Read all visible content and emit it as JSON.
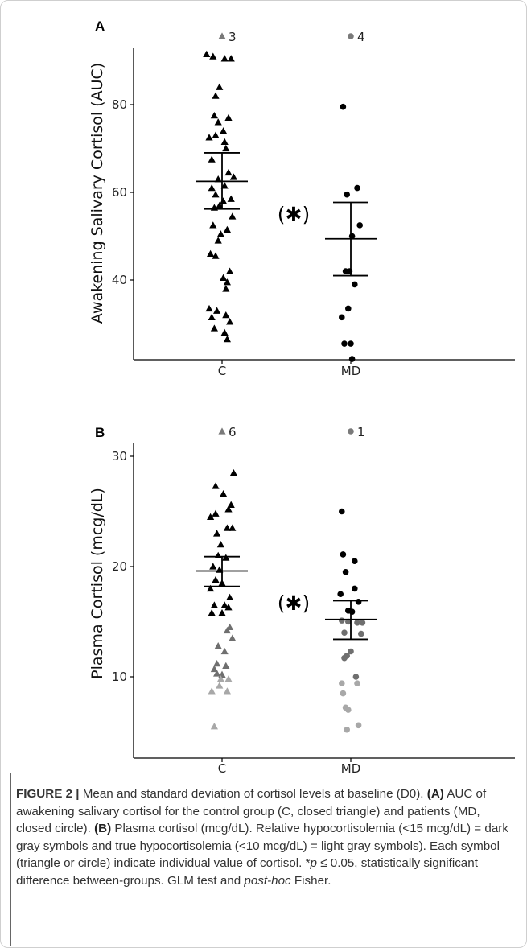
{
  "chart_data": [
    {
      "panel_label": "A",
      "type": "scatter",
      "ylabel": "Awakening Salivary Cortisol (AUC)",
      "categories": [
        "C",
        "MD"
      ],
      "yticks": [
        40,
        60,
        80
      ],
      "ylim": [
        22,
        96
      ],
      "grid": false,
      "significance_label": "(✱)",
      "series": [
        {
          "category": "C",
          "marker": "triangle",
          "color": "#000000",
          "points": [
            [
              -0.12,
              91.5
            ],
            [
              -0.07,
              91
            ],
            [
              0.02,
              90.5
            ],
            [
              0.07,
              90.5
            ],
            [
              -0.02,
              84
            ],
            [
              -0.05,
              82
            ],
            [
              -0.06,
              77.5
            ],
            [
              0.05,
              77
            ],
            [
              -0.03,
              76
            ],
            [
              0.01,
              74
            ],
            [
              -0.05,
              73
            ],
            [
              -0.1,
              72.5
            ],
            [
              0.02,
              71.5
            ],
            [
              0.03,
              70
            ],
            [
              -0.08,
              67.5
            ],
            [
              0.05,
              64.5
            ],
            [
              0.09,
              63.5
            ],
            [
              -0.03,
              63
            ],
            [
              0.02,
              61.5
            ],
            [
              -0.08,
              61
            ],
            [
              -0.05,
              59.5
            ],
            [
              0.07,
              58.5
            ],
            [
              0.01,
              58
            ],
            [
              -0.02,
              57
            ],
            [
              -0.06,
              56.5
            ],
            [
              0.08,
              54.5
            ],
            [
              -0.07,
              52.5
            ],
            [
              0.04,
              51.5
            ],
            [
              -0.01,
              50.5
            ],
            [
              -0.03,
              49
            ],
            [
              -0.09,
              46
            ],
            [
              -0.05,
              45.5
            ],
            [
              0.06,
              42
            ],
            [
              0.01,
              40.5
            ],
            [
              0.04,
              39.5
            ],
            [
              0.03,
              38
            ],
            [
              -0.1,
              33.5
            ],
            [
              -0.04,
              33
            ],
            [
              0.03,
              32
            ],
            [
              -0.08,
              31.5
            ],
            [
              0.06,
              30.5
            ],
            [
              -0.06,
              29
            ],
            [
              0.02,
              28
            ],
            [
              0.04,
              26.5
            ]
          ]
        },
        {
          "category": "MD",
          "marker": "circle",
          "color": "#000000",
          "points": [
            [
              -0.06,
              79.5
            ],
            [
              0.05,
              61
            ],
            [
              -0.03,
              59.5
            ],
            [
              0.07,
              52.5
            ],
            [
              0.01,
              50
            ],
            [
              -0.04,
              42
            ],
            [
              -0.01,
              42
            ],
            [
              0.03,
              39
            ],
            [
              -0.02,
              33.5
            ],
            [
              -0.07,
              31.5
            ],
            [
              -0.05,
              25.5
            ],
            [
              0.0,
              25.5
            ],
            [
              0.01,
              22
            ]
          ]
        }
      ],
      "summary": [
        {
          "category": "C",
          "mean": 62.5,
          "lower": 56.2,
          "upper": 69
        },
        {
          "category": "MD",
          "mean": 49.4,
          "lower": 41,
          "upper": 57.7
        }
      ],
      "annotations": [
        {
          "category": "C",
          "marker": "triangle",
          "label": "3"
        },
        {
          "category": "MD",
          "marker": "circle",
          "label": "4"
        }
      ]
    },
    {
      "panel_label": "B",
      "type": "scatter",
      "ylabel": "Plasma Cortisol (mcg/dL)",
      "categories": [
        "C",
        "MD"
      ],
      "yticks": [
        10,
        20,
        30
      ],
      "ylim": [
        3,
        31.5
      ],
      "grid": false,
      "significance_label": "(✱)",
      "series": [
        {
          "category": "C",
          "marker": "triangle",
          "color": "#000000",
          "points": [
            [
              0.09,
              28.5
            ],
            [
              -0.05,
              27.3
            ],
            [
              0.01,
              26.6
            ],
            [
              0.07,
              25.6
            ],
            [
              0.05,
              25.2
            ],
            [
              -0.05,
              24.8
            ],
            [
              -0.09,
              24.5
            ],
            [
              0.04,
              23.5
            ],
            [
              0.08,
              23.5
            ],
            [
              -0.04,
              23
            ],
            [
              -0.01,
              22
            ],
            [
              -0.03,
              21
            ],
            [
              0.03,
              20.8
            ],
            [
              -0.07,
              20
            ],
            [
              -0.02,
              19.7
            ],
            [
              -0.05,
              18.8
            ],
            [
              0.0,
              18.5
            ],
            [
              -0.09,
              18
            ],
            [
              0.06,
              17.2
            ],
            [
              -0.06,
              16.5
            ],
            [
              0.02,
              16.5
            ],
            [
              0.05,
              16.3
            ],
            [
              -0.08,
              15.8
            ],
            [
              0.0,
              15.8
            ]
          ]
        },
        {
          "category": "C",
          "marker": "triangle",
          "color": "#6f6f6f",
          "points": [
            [
              0.06,
              14.5
            ],
            [
              0.04,
              14.2
            ],
            [
              0.08,
              13.5
            ],
            [
              -0.03,
              12.8
            ],
            [
              0.02,
              12.3
            ],
            [
              -0.04,
              11.2
            ],
            [
              0.03,
              11
            ],
            [
              -0.06,
              10.7
            ],
            [
              -0.04,
              10.3
            ],
            [
              0.0,
              10.2
            ]
          ]
        },
        {
          "category": "C",
          "marker": "triangle",
          "color": "#a8a8a8",
          "points": [
            [
              0.05,
              9.8
            ],
            [
              -0.01,
              9.8
            ],
            [
              -0.02,
              9.2
            ],
            [
              -0.08,
              8.7
            ],
            [
              0.04,
              8.7
            ],
            [
              -0.06,
              5.5
            ]
          ]
        },
        {
          "category": "MD",
          "marker": "circle",
          "color": "#000000",
          "points": [
            [
              -0.07,
              25
            ],
            [
              -0.06,
              21.1
            ],
            [
              0.03,
              20.5
            ],
            [
              -0.04,
              19.5
            ],
            [
              0.03,
              18
            ],
            [
              -0.08,
              17.5
            ],
            [
              0.06,
              16.8
            ],
            [
              -0.02,
              16
            ],
            [
              0.01,
              15.9
            ]
          ]
        },
        {
          "category": "MD",
          "marker": "circle",
          "color": "#6f6f6f",
          "points": [
            [
              -0.07,
              15.1
            ],
            [
              -0.02,
              15
            ],
            [
              0.05,
              14.9
            ],
            [
              0.09,
              14.9
            ],
            [
              -0.05,
              14
            ],
            [
              0.08,
              13.9
            ],
            [
              0.0,
              12.3
            ],
            [
              -0.05,
              11.7
            ],
            [
              -0.03,
              11.9
            ],
            [
              0.04,
              10
            ]
          ]
        },
        {
          "category": "MD",
          "marker": "circle",
          "color": "#a8a8a8",
          "points": [
            [
              -0.07,
              9.4
            ],
            [
              0.05,
              9.4
            ],
            [
              -0.06,
              8.5
            ],
            [
              -0.04,
              7.2
            ],
            [
              -0.02,
              7.0
            ],
            [
              0.06,
              5.6
            ],
            [
              -0.03,
              5.2
            ]
          ]
        }
      ],
      "summary": [
        {
          "category": "C",
          "mean": 19.6,
          "lower": 18.2,
          "upper": 20.9
        },
        {
          "category": "MD",
          "mean": 15.2,
          "lower": 13.4,
          "upper": 16.9
        }
      ],
      "annotations": [
        {
          "category": "C",
          "marker": "triangle",
          "label": "6"
        },
        {
          "category": "MD",
          "marker": "circle",
          "label": "1"
        }
      ]
    }
  ],
  "caption": {
    "fig_label": "FIGURE 2 |",
    "s1": " Mean and standard deviation of cortisol levels at baseline (D0). ",
    "a_label": "(A)",
    "s2": " AUC of awakening salivary cortisol for the control group (C, closed triangle) and patients (MD, closed circle). ",
    "b_label": "(B)",
    "s3": " Plasma cortisol (mcg/dL). Relative hypocortisolemia (<15 mcg/dL) = dark gray symbols and true hypocortisolemia (<10 mcg/dL) = light gray symbols). Each symbol (triangle or circle) indicate individual value of cortisol. *",
    "p_var": "p",
    "s4": " ≤ 0.05, statistically significant difference between-groups. GLM test and ",
    "posthoc": "post-hoc",
    "s5": " Fisher."
  }
}
